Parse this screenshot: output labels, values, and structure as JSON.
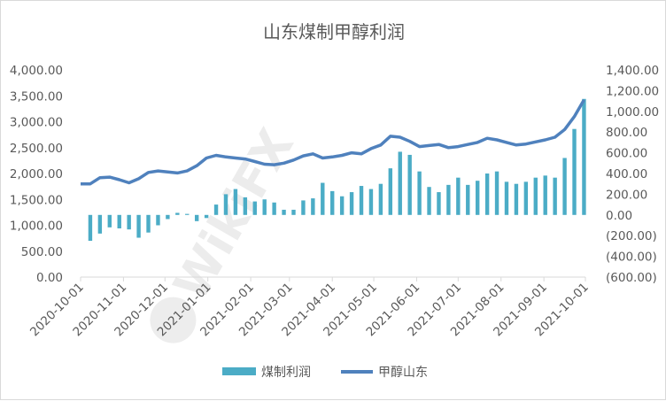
{
  "chart_data": {
    "type": "bar+line",
    "title": "山东煤制甲醇利润",
    "watermark": "WikiFX",
    "x_ticks": [
      "2020-10-01",
      "2020-11-01",
      "2020-12-01",
      "2021-01-01",
      "2021-02-01",
      "2021-03-01",
      "2021-04-01",
      "2021-05-01",
      "2021-06-01",
      "2021-07-01",
      "2021-08-01",
      "2021-09-01",
      "2021-10-01"
    ],
    "left_axis": {
      "ylim": [
        0,
        4000
      ],
      "ticks": [
        "0.00",
        "500.00",
        "1,000.00",
        "1,500.00",
        "2,000.00",
        "2,500.00",
        "3,000.00",
        "3,500.00",
        "4,000.00"
      ]
    },
    "right_axis": {
      "ylim": [
        -600,
        1400
      ],
      "ticks": [
        "(600.00)",
        "(400.00)",
        "(200.00)",
        "0.00",
        "200.00",
        "400.00",
        "600.00",
        "800.00",
        "1,000.00",
        "1,200.00",
        "1,400.00"
      ]
    },
    "series": [
      {
        "name": "煤制利润",
        "type": "bar",
        "axis": "right",
        "color": "#4bacc6",
        "points": [
          [
            "2020-10-08",
            -250
          ],
          [
            "2020-10-15",
            -180
          ],
          [
            "2020-10-22",
            -120
          ],
          [
            "2020-10-29",
            -130
          ],
          [
            "2020-11-05",
            -140
          ],
          [
            "2020-11-12",
            -220
          ],
          [
            "2020-11-19",
            -170
          ],
          [
            "2020-11-26",
            -100
          ],
          [
            "2020-12-03",
            -40
          ],
          [
            "2020-12-10",
            20
          ],
          [
            "2020-12-17",
            10
          ],
          [
            "2020-12-24",
            -60
          ],
          [
            "2020-12-31",
            -30
          ],
          [
            "2021-01-07",
            100
          ],
          [
            "2021-01-14",
            200
          ],
          [
            "2021-01-21",
            250
          ],
          [
            "2021-01-28",
            170
          ],
          [
            "2021-02-04",
            130
          ],
          [
            "2021-02-11",
            150
          ],
          [
            "2021-02-18",
            120
          ],
          [
            "2021-02-25",
            50
          ],
          [
            "2021-03-04",
            50
          ],
          [
            "2021-03-11",
            140
          ],
          [
            "2021-03-18",
            160
          ],
          [
            "2021-03-25",
            310
          ],
          [
            "2021-04-01",
            230
          ],
          [
            "2021-04-08",
            180
          ],
          [
            "2021-04-15",
            220
          ],
          [
            "2021-04-22",
            280
          ],
          [
            "2021-04-29",
            250
          ],
          [
            "2021-05-06",
            300
          ],
          [
            "2021-05-13",
            450
          ],
          [
            "2021-05-20",
            610
          ],
          [
            "2021-05-27",
            580
          ],
          [
            "2021-06-03",
            420
          ],
          [
            "2021-06-10",
            270
          ],
          [
            "2021-06-17",
            220
          ],
          [
            "2021-06-24",
            290
          ],
          [
            "2021-07-01",
            360
          ],
          [
            "2021-07-08",
            290
          ],
          [
            "2021-07-15",
            330
          ],
          [
            "2021-07-22",
            400
          ],
          [
            "2021-07-29",
            420
          ],
          [
            "2021-08-05",
            320
          ],
          [
            "2021-08-12",
            300
          ],
          [
            "2021-08-19",
            320
          ],
          [
            "2021-08-26",
            360
          ],
          [
            "2021-09-02",
            380
          ],
          [
            "2021-09-09",
            360
          ],
          [
            "2021-09-16",
            550
          ],
          [
            "2021-09-23",
            830
          ],
          [
            "2021-09-30",
            1120
          ]
        ]
      },
      {
        "name": "甲醇山东",
        "type": "line",
        "axis": "left",
        "color": "#4f81bd",
        "points": [
          [
            "2020-10-01",
            1800
          ],
          [
            "2020-10-08",
            1800
          ],
          [
            "2020-10-15",
            1920
          ],
          [
            "2020-10-22",
            1930
          ],
          [
            "2020-10-29",
            1880
          ],
          [
            "2020-11-05",
            1820
          ],
          [
            "2020-11-12",
            1900
          ],
          [
            "2020-11-19",
            2020
          ],
          [
            "2020-11-26",
            2050
          ],
          [
            "2020-12-03",
            2030
          ],
          [
            "2020-12-10",
            2010
          ],
          [
            "2020-12-17",
            2050
          ],
          [
            "2020-12-24",
            2150
          ],
          [
            "2020-12-31",
            2300
          ],
          [
            "2021-01-07",
            2350
          ],
          [
            "2021-01-14",
            2320
          ],
          [
            "2021-01-21",
            2300
          ],
          [
            "2021-01-28",
            2280
          ],
          [
            "2021-02-04",
            2230
          ],
          [
            "2021-02-11",
            2180
          ],
          [
            "2021-02-18",
            2170
          ],
          [
            "2021-02-25",
            2200
          ],
          [
            "2021-03-04",
            2260
          ],
          [
            "2021-03-11",
            2340
          ],
          [
            "2021-03-18",
            2380
          ],
          [
            "2021-03-25",
            2300
          ],
          [
            "2021-04-01",
            2320
          ],
          [
            "2021-04-08",
            2350
          ],
          [
            "2021-04-15",
            2400
          ],
          [
            "2021-04-22",
            2380
          ],
          [
            "2021-04-29",
            2480
          ],
          [
            "2021-05-06",
            2550
          ],
          [
            "2021-05-13",
            2720
          ],
          [
            "2021-05-20",
            2700
          ],
          [
            "2021-05-27",
            2620
          ],
          [
            "2021-06-03",
            2520
          ],
          [
            "2021-06-10",
            2540
          ],
          [
            "2021-06-17",
            2560
          ],
          [
            "2021-06-24",
            2500
          ],
          [
            "2021-07-01",
            2520
          ],
          [
            "2021-07-08",
            2560
          ],
          [
            "2021-07-15",
            2600
          ],
          [
            "2021-07-22",
            2680
          ],
          [
            "2021-07-29",
            2650
          ],
          [
            "2021-08-05",
            2600
          ],
          [
            "2021-08-12",
            2550
          ],
          [
            "2021-08-19",
            2570
          ],
          [
            "2021-08-26",
            2610
          ],
          [
            "2021-09-02",
            2650
          ],
          [
            "2021-09-09",
            2700
          ],
          [
            "2021-09-16",
            2850
          ],
          [
            "2021-09-23",
            3100
          ],
          [
            "2021-09-30",
            3420
          ]
        ]
      }
    ],
    "legend": {
      "position": "bottom",
      "entries": [
        "煤制利润",
        "甲醇山东"
      ]
    },
    "grid": false
  }
}
